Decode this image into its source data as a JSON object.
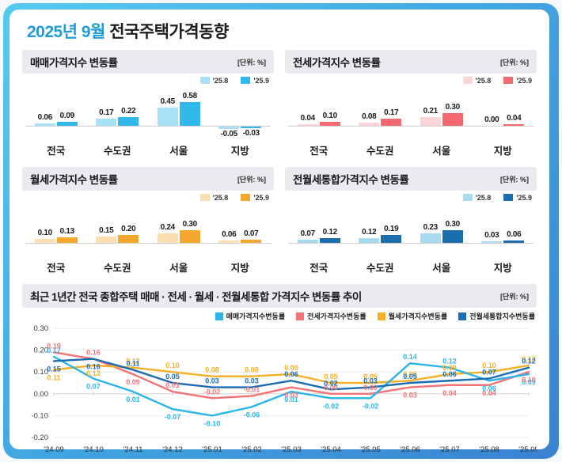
{
  "page": {
    "title_highlight": "2025년 9월",
    "title_rest": "전국주택가격동향"
  },
  "unit_label": "[단위: %]",
  "chart_data": [
    {
      "type": "bar",
      "id": "sale",
      "title": "매매가격지수 변동률",
      "unit": "[단위: %]",
      "categories": [
        "전국",
        "수도권",
        "서울",
        "지방"
      ],
      "series": [
        {
          "name": "'25.8",
          "color": "#a8e1f7",
          "values": [
            0.06,
            0.17,
            0.45,
            -0.05
          ]
        },
        {
          "name": "'25.9",
          "color": "#33b8ec",
          "values": [
            0.09,
            0.22,
            0.58,
            -0.03
          ]
        }
      ]
    },
    {
      "type": "bar",
      "id": "jeonse",
      "title": "전세가격지수 변동률",
      "unit": "[단위: %]",
      "categories": [
        "전국",
        "수도권",
        "서울",
        "지방"
      ],
      "series": [
        {
          "name": "'25.8",
          "color": "#fbd4d8",
          "values": [
            0.04,
            0.08,
            0.21,
            0.0
          ]
        },
        {
          "name": "'25.9",
          "color": "#f4696f",
          "values": [
            0.1,
            0.17,
            0.3,
            0.04
          ]
        }
      ]
    },
    {
      "type": "bar",
      "id": "wolse",
      "title": "월세가격지수 변동률",
      "unit": "[단위: %]",
      "categories": [
        "전국",
        "수도권",
        "서울",
        "지방"
      ],
      "series": [
        {
          "name": "'25.8",
          "color": "#fcdfb1",
          "values": [
            0.1,
            0.15,
            0.24,
            0.06
          ]
        },
        {
          "name": "'25.9",
          "color": "#f5a62f",
          "values": [
            0.13,
            0.2,
            0.3,
            0.07
          ]
        }
      ]
    },
    {
      "type": "bar",
      "id": "combined",
      "title": "전월세통합가격지수 변동률",
      "unit": "[단위: %]",
      "categories": [
        "전국",
        "수도권",
        "서울",
        "지방"
      ],
      "series": [
        {
          "name": "'25.8",
          "color": "#a8daf2",
          "values": [
            0.07,
            0.12,
            0.23,
            0.03
          ]
        },
        {
          "name": "'25.9",
          "color": "#1c6fae",
          "values": [
            0.12,
            0.19,
            0.3,
            0.06
          ]
        }
      ]
    },
    {
      "type": "line",
      "id": "trend",
      "title": "최근 1년간 전국 종합주택 매매 · 전세 · 월세 · 전월세통합 가격지수 변동률 추이",
      "unit": "[단위: %]",
      "x": [
        "'24.09",
        "'24.10",
        "'24.11",
        "'24.12",
        "'25.01",
        "'25.02",
        "'25.03",
        "'25.04",
        "'25.05",
        "'25.06",
        "'25.07",
        "'25.08",
        "'25.09"
      ],
      "ylim": [
        -0.2,
        0.3
      ],
      "yticks": [
        0.3,
        0.2,
        0.1,
        0.0,
        -0.1,
        -0.2
      ],
      "grid": true,
      "legend_position": "top-right",
      "series": [
        {
          "name": "매매가격지수변동률",
          "color": "#29b4ea",
          "values": [
            0.17,
            0.07,
            0.01,
            -0.07,
            -0.1,
            -0.06,
            0.01,
            -0.02,
            -0.02,
            0.14,
            0.12,
            0.06,
            0.09
          ]
        },
        {
          "name": "전세가격지수변동률",
          "color": "#f47274",
          "values": [
            0.19,
            0.16,
            0.09,
            0.01,
            -0.02,
            -0.01,
            0.03,
            0.0,
            0.0,
            0.03,
            0.04,
            0.04,
            0.1
          ]
        },
        {
          "name": "월세가격지수변동률",
          "color": "#f6b026",
          "values": [
            0.11,
            0.13,
            0.12,
            0.1,
            0.08,
            0.08,
            0.09,
            0.05,
            0.05,
            0.06,
            0.09,
            0.1,
            0.13
          ]
        },
        {
          "name": "전월세통합지수변동률",
          "color": "#1b6cb3",
          "values": [
            0.15,
            0.16,
            0.11,
            0.05,
            0.03,
            0.03,
            0.06,
            0.02,
            0.03,
            0.05,
            0.06,
            0.07,
            0.12
          ]
        }
      ]
    }
  ]
}
